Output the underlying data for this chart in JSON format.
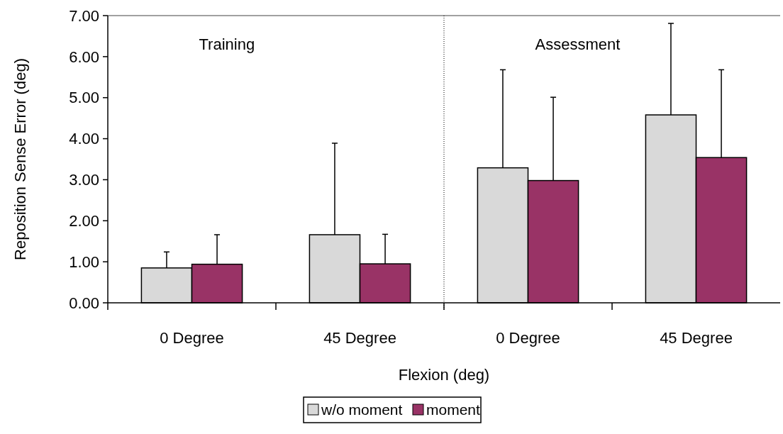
{
  "chart_data": {
    "type": "bar",
    "xlabel": "Flexion (deg)",
    "ylabel": "Reposition Sense Error (deg)",
    "categories": [
      "0 Degree",
      "45 Degree",
      "0 Degree",
      "45 Degree"
    ],
    "series": [
      {
        "name": "w/o moment",
        "color": "#d9d9d9",
        "values": [
          0.85,
          1.66,
          3.29,
          4.58
        ],
        "errors": [
          [
            0.85,
            1.24
          ],
          [
            1.66,
            3.89
          ],
          [
            3.29,
            5.68
          ],
          [
            4.58,
            6.81
          ]
        ]
      },
      {
        "name": "moment",
        "color": "#993366",
        "values": [
          0.94,
          0.95,
          2.98,
          3.54
        ],
        "errors": [
          [
            0.94,
            1.66
          ],
          [
            0.95,
            1.67
          ],
          [
            2.98,
            5.01
          ],
          [
            3.54,
            5.68
          ]
        ]
      }
    ],
    "ylim": [
      0,
      7
    ],
    "yticks": [
      {
        "value": 0,
        "label": "0.00"
      },
      {
        "value": 1,
        "label": "1.00"
      },
      {
        "value": 2,
        "label": "2.00"
      },
      {
        "value": 3,
        "label": "3.00"
      },
      {
        "value": 4,
        "label": "4.00"
      },
      {
        "value": 5,
        "label": "5.00"
      },
      {
        "value": 6,
        "label": "6.00"
      },
      {
        "value": 7,
        "label": "7.00"
      }
    ],
    "annotations": [
      "Training",
      "Assessment"
    ],
    "grid": false,
    "legend": "bottom"
  }
}
